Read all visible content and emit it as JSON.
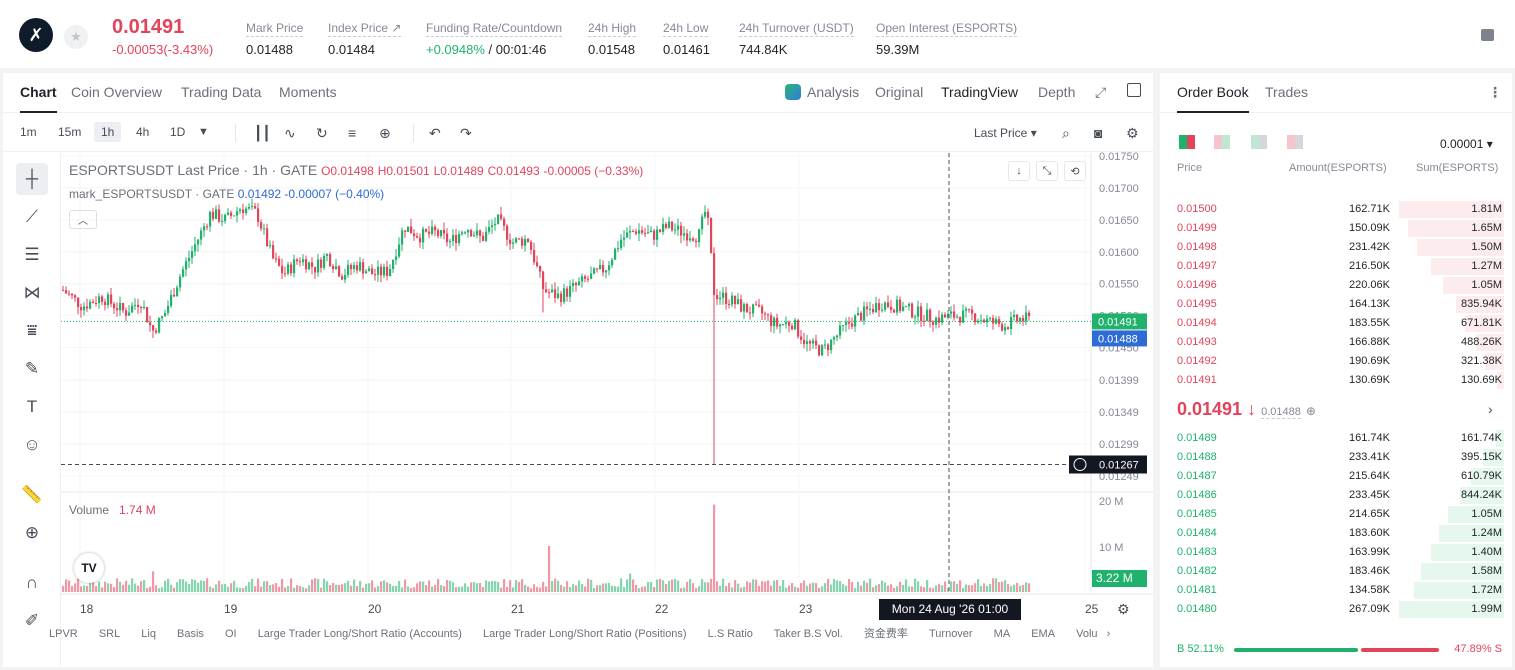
{
  "header": {
    "price": "0.01491",
    "change": "-0.00053(-3.43%)",
    "stats": [
      {
        "label": "Mark Price",
        "value": "0.01488",
        "left": 0
      },
      {
        "label": "Index Price ↗",
        "value": "0.01484"
      },
      {
        "label": "Funding Rate/Countdown",
        "value_green": "+0.0948%",
        "value": " / 00:01:46"
      },
      {
        "label": "24h High",
        "value": "0.01548"
      },
      {
        "label": "24h Low",
        "value": "0.01461"
      },
      {
        "label": "24h Turnover (USDT)",
        "value": "744.84K"
      },
      {
        "label": "Open Interest (ESPORTS)",
        "value": "59.39M"
      }
    ]
  },
  "tabs": {
    "chart": "Chart",
    "coin_overview": "Coin Overview",
    "trading_data": "Trading Data",
    "moments": "Moments",
    "analysis": "Analysis",
    "original": "Original",
    "tradingview": "TradingView",
    "depth": "Depth"
  },
  "toolbar": {
    "timeframes": [
      "1m",
      "15m",
      "1h",
      "4h",
      "1D"
    ],
    "selected": "1h",
    "last_price": "Last Price ▾"
  },
  "legend": {
    "symbol": "ESPORTSUSDT Last Price · 1h · GATE",
    "o": "O0.01498",
    "h": "H0.01501",
    "l": "L0.01489",
    "c": "C0.01493",
    "chg": "-0.00005 (−0.33%)",
    "mark_label": "mark_ESPORTSUSDT · GATE",
    "mark_vals": "0.01492  -0.00007 (−0.40%)",
    "volume_label": "Volume",
    "volume_val": "1.74 M"
  },
  "price_axis": [
    "0.01750",
    "0.01700",
    "0.01650",
    "0.01600",
    "0.01550",
    "0.01500",
    "0.01450",
    "0.01399",
    "0.01349",
    "0.01299",
    "0.01249"
  ],
  "price_tags": {
    "last": "0.01491",
    "mark": "0.01488",
    "cross": "0.01267"
  },
  "vol_axis": [
    "20 M",
    "10 M"
  ],
  "vol_badge": "3.22 M",
  "time_axis": [
    "18",
    "19",
    "20",
    "21",
    "22",
    "23",
    "25"
  ],
  "crosshair_date": "Mon 24 Aug '26   01:00",
  "indicators": [
    "LPVR",
    "SRL",
    "Liq",
    "Basis",
    "OI",
    "Large Trader Long/Short Ratio (Accounts)",
    "Large Trader Long/Short Ratio (Positions)",
    "L.S Ratio",
    "Taker B.S Vol.",
    "资金费率",
    "Turnover",
    "MA",
    "EMA",
    "Volu",
    "›"
  ],
  "colors": {
    "up": "#20b26c",
    "down": "#e2445c",
    "mark_line": "#2d6bd5"
  },
  "orderbook": {
    "tab_book": "Order Book",
    "tab_trades": "Trades",
    "precision": "0.00001 ▾",
    "col_price": "Price",
    "col_amount": "Amount(ESPORTS)",
    "col_sum": "Sum(ESPORTS)",
    "asks": [
      {
        "p": "0.01500",
        "a": "162.71K",
        "s": "1.81M",
        "d": 1.0
      },
      {
        "p": "0.01499",
        "a": "150.09K",
        "s": "1.65M",
        "d": 0.91
      },
      {
        "p": "0.01498",
        "a": "231.42K",
        "s": "1.50M",
        "d": 0.83
      },
      {
        "p": "0.01497",
        "a": "216.50K",
        "s": "1.27M",
        "d": 0.7
      },
      {
        "p": "0.01496",
        "a": "220.06K",
        "s": "1.05M",
        "d": 0.58
      },
      {
        "p": "0.01495",
        "a": "164.13K",
        "s": "835.94K",
        "d": 0.46
      },
      {
        "p": "0.01494",
        "a": "183.55K",
        "s": "671.81K",
        "d": 0.37
      },
      {
        "p": "0.01493",
        "a": "166.88K",
        "s": "488.26K",
        "d": 0.27
      },
      {
        "p": "0.01492",
        "a": "190.69K",
        "s": "321.38K",
        "d": 0.18
      },
      {
        "p": "0.01491",
        "a": "130.69K",
        "s": "130.69K",
        "d": 0.07
      }
    ],
    "mid_price": "0.01491 ↓",
    "mid_mark": "0.01488",
    "bids": [
      {
        "p": "0.01489",
        "a": "161.74K",
        "s": "161.74K",
        "d": 0.08
      },
      {
        "p": "0.01488",
        "a": "233.41K",
        "s": "395.15K",
        "d": 0.2
      },
      {
        "p": "0.01487",
        "a": "215.64K",
        "s": "610.79K",
        "d": 0.31
      },
      {
        "p": "0.01486",
        "a": "233.45K",
        "s": "844.24K",
        "d": 0.42
      },
      {
        "p": "0.01485",
        "a": "214.65K",
        "s": "1.05M",
        "d": 0.53
      },
      {
        "p": "0.01484",
        "a": "183.60K",
        "s": "1.24M",
        "d": 0.62
      },
      {
        "p": "0.01483",
        "a": "163.99K",
        "s": "1.40M",
        "d": 0.7
      },
      {
        "p": "0.01482",
        "a": "183.46K",
        "s": "1.58M",
        "d": 0.79
      },
      {
        "p": "0.01481",
        "a": "134.58K",
        "s": "1.72M",
        "d": 0.86
      },
      {
        "p": "0.01480",
        "a": "267.09K",
        "s": "1.99M",
        "d": 1.0
      }
    ],
    "buy_ratio": "B 52.11%",
    "sell_ratio": "47.89% S"
  }
}
